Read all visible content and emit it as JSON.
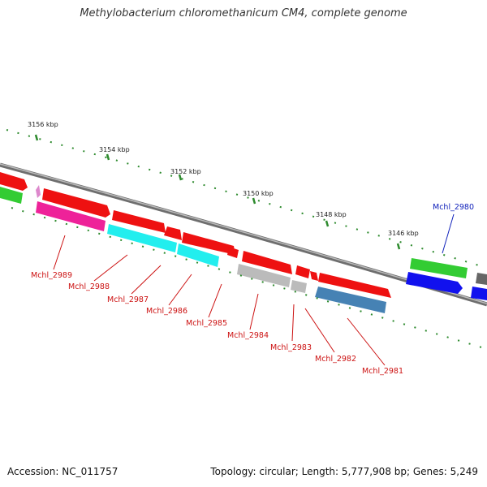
{
  "title": "Methylobacterium chloromethanicum CM4, complete genome",
  "footer": {
    "accession": "Accession: NC_011757",
    "summary": "Topology: circular; Length: 5,777,908 bp; Genes: 5,249"
  },
  "colors": {
    "backbone": "#8a8a8a",
    "ticks": "#2e8b2e",
    "label_red": "#cc1111",
    "label_blue": "#1122bb"
  },
  "ticks": [
    "3156 kbp",
    "3154 kbp",
    "3152 kbp",
    "3150 kbp",
    "3148 kbp",
    "3146 kbp"
  ],
  "genes": [
    {
      "label": "Mchl_2989",
      "color": "#cc1111"
    },
    {
      "label": "Mchl_2988",
      "color": "#cc1111"
    },
    {
      "label": "Mchl_2987",
      "color": "#cc1111"
    },
    {
      "label": "Mchl_2986",
      "color": "#cc1111"
    },
    {
      "label": "Mchl_2985",
      "color": "#cc1111"
    },
    {
      "label": "Mchl_2984",
      "color": "#cc1111"
    },
    {
      "label": "Mchl_2983",
      "color": "#cc1111"
    },
    {
      "label": "Mchl_2982",
      "color": "#cc1111"
    },
    {
      "label": "Mchl_2981",
      "color": "#cc1111"
    },
    {
      "label": "Mchl_2980",
      "color": "#1122bb"
    }
  ]
}
